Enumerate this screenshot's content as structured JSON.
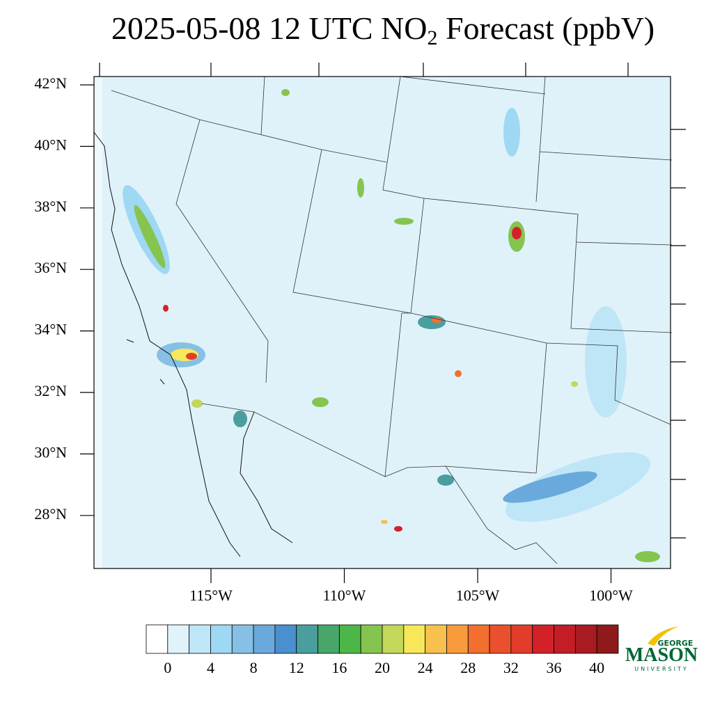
{
  "title": {
    "main": "2025-05-08 12 UTC NO",
    "sub": "2",
    "rest": " Forecast (ppbV)"
  },
  "lat_labels": [
    {
      "value": 42,
      "label": "42°N"
    },
    {
      "value": 40,
      "label": "40°N"
    },
    {
      "value": 38,
      "label": "38°N"
    },
    {
      "value": 36,
      "label": "36°N"
    },
    {
      "value": 34,
      "label": "34°N"
    },
    {
      "value": 32,
      "label": "32°N"
    },
    {
      "value": 30,
      "label": "30°N"
    },
    {
      "value": 28,
      "label": "28°N"
    }
  ],
  "lon_labels": [
    {
      "value": -115,
      "label": "115°W"
    },
    {
      "value": -110,
      "label": "110°W"
    },
    {
      "value": -105,
      "label": "105°W"
    },
    {
      "value": -100,
      "label": "100°W"
    }
  ],
  "colorbar": {
    "colors": [
      "#ffffff",
      "#e0f3fb",
      "#bfe6f6",
      "#9fd8f3",
      "#86c0e4",
      "#6aa9dc",
      "#4a8fcf",
      "#4a9e9e",
      "#48a66a",
      "#4cb748",
      "#86c450",
      "#c3d75a",
      "#f7e859",
      "#f8c04f",
      "#f79b3c",
      "#f26f30",
      "#ea502c",
      "#e13d2a",
      "#d32129",
      "#c31d26",
      "#a81b21",
      "#8e1a1c"
    ],
    "ticks": [
      0,
      4,
      8,
      12,
      16,
      20,
      24,
      28,
      32,
      36,
      40
    ]
  },
  "logo": {
    "top": "GEORGE",
    "name": "MASON",
    "bottom": "UNIVERSITY"
  }
}
